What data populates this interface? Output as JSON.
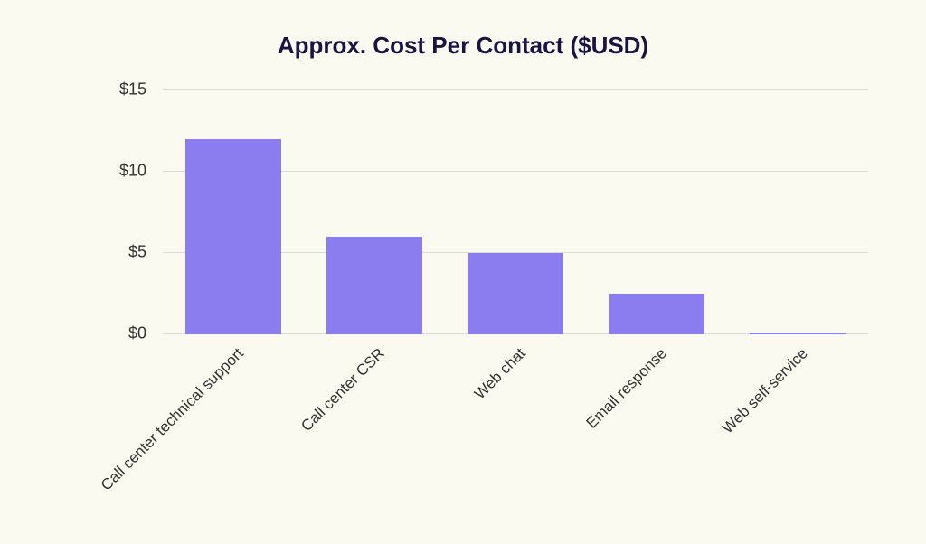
{
  "chart": {
    "type": "bar",
    "title": "Approx. Cost Per Contact ($USD)",
    "title_fontsize": 26,
    "title_color": "#1a1440",
    "background_color": "#fbfaf0",
    "bar_color": "#8b7cf0",
    "grid_color": "#d9d9d9",
    "tick_label_color": "#333333",
    "tick_fontsize": 18,
    "x_label_fontsize": 17,
    "ylim": [
      0,
      15
    ],
    "ytick_step": 5,
    "y_tick_labels": [
      "$0",
      "$5",
      "$10",
      "$15"
    ],
    "bar_width": 0.68,
    "categories": [
      "Call center technical support",
      "Call center CSR",
      "Web chat",
      "Email response",
      "Web self-service"
    ],
    "values": [
      12,
      6,
      5,
      2.5,
      0.1
    ]
  }
}
